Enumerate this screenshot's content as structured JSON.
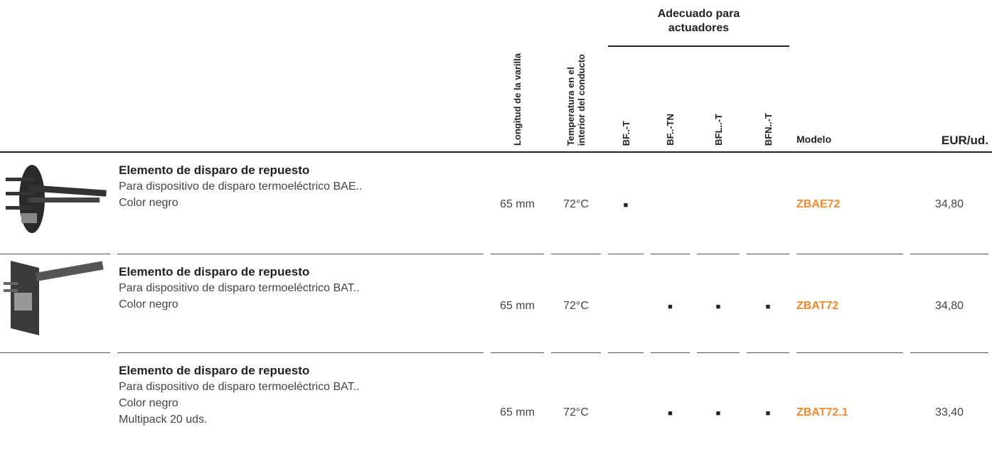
{
  "header": {
    "group": "Adecuado para\nactuadores",
    "columns": [
      "Longitud de la varilla",
      "Temperatura en el\ninterior del conducto",
      "BF..-T",
      "BF..-TN",
      "BFL..-T",
      "BFN..-T",
      "Modelo",
      "EUR/ud."
    ]
  },
  "rows": [
    {
      "title": "Elemento de disparo de repuesto",
      "lines": [
        "Para dispositivo de disparo termoeléctrico BAE..",
        "Color negro"
      ],
      "cells": [
        "65 mm",
        "72°C",
        "■",
        null,
        null,
        null,
        "ZBAE72",
        "34,80"
      ]
    },
    {
      "title": "Elemento de disparo de repuesto",
      "lines": [
        "Para dispositivo de disparo termoeléctrico BAT..",
        "Color negro"
      ],
      "cells": [
        "65 mm",
        "72°C",
        null,
        "■",
        "■",
        "■",
        "ZBAT72",
        "34,80"
      ]
    },
    {
      "title": "Elemento de disparo de repuesto",
      "lines": [
        "Para dispositivo de disparo termoeléctrico BAT..",
        "Color negro",
        "Multipack 20 uds."
      ],
      "cells": [
        "65 mm",
        "72°C",
        null,
        "■",
        "■",
        "■",
        "ZBAT72.1",
        "33,40"
      ]
    }
  ]
}
